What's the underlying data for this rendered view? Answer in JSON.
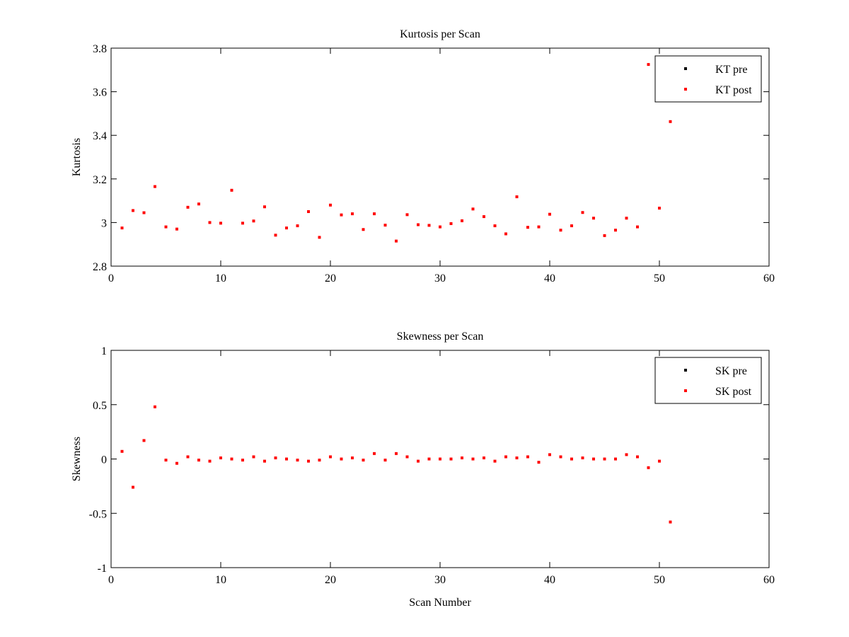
{
  "chart_data": [
    {
      "type": "scatter",
      "title": "Kurtosis per Scan",
      "xlabel": "",
      "ylabel": "Kurtosis",
      "xlim": [
        0,
        60
      ],
      "ylim": [
        2.8,
        3.8
      ],
      "xticks": [
        0,
        10,
        20,
        30,
        40,
        50,
        60
      ],
      "yticks": [
        2.8,
        3,
        3.2,
        3.4,
        3.6,
        3.8
      ],
      "xtick_labels": [
        "0",
        "10",
        "20",
        "30",
        "40",
        "50",
        "60"
      ],
      "ytick_labels": [
        "2.8",
        "3",
        "3.2",
        "3.4",
        "3.6",
        "3.8"
      ],
      "legend_position": "top-right",
      "series": [
        {
          "name": "KT pre",
          "color": "#000000",
          "x": [],
          "y": []
        },
        {
          "name": "KT post",
          "color": "#ff0000",
          "x": [
            1,
            2,
            3,
            4,
            5,
            6,
            7,
            8,
            9,
            10,
            11,
            12,
            13,
            14,
            15,
            16,
            17,
            18,
            19,
            20,
            21,
            22,
            23,
            24,
            25,
            26,
            27,
            28,
            29,
            30,
            31,
            32,
            33,
            34,
            35,
            36,
            37,
            38,
            39,
            40,
            41,
            42,
            43,
            44,
            45,
            46,
            47,
            48,
            49,
            50,
            51
          ],
          "y": [
            2.975,
            3.055,
            3.045,
            3.165,
            2.98,
            2.97,
            3.07,
            3.085,
            3.0,
            2.997,
            3.148,
            2.997,
            3.007,
            3.072,
            2.942,
            2.975,
            2.985,
            3.05,
            2.932,
            3.08,
            3.035,
            3.04,
            2.968,
            3.04,
            2.988,
            2.915,
            3.036,
            2.99,
            2.987,
            2.98,
            2.995,
            3.008,
            3.062,
            3.027,
            2.985,
            2.948,
            3.118,
            2.978,
            2.98,
            3.038,
            2.965,
            2.985,
            3.046,
            3.02,
            2.94,
            2.965,
            3.02,
            2.98,
            3.725,
            3.066,
            3.463
          ]
        }
      ]
    },
    {
      "type": "scatter",
      "title": "Skewness per Scan",
      "xlabel": "Scan Number",
      "ylabel": "Skewness",
      "xlim": [
        0,
        60
      ],
      "ylim": [
        -1,
        1
      ],
      "xticks": [
        0,
        10,
        20,
        30,
        40,
        50,
        60
      ],
      "yticks": [
        -1,
        -0.5,
        0,
        0.5,
        1
      ],
      "xtick_labels": [
        "0",
        "10",
        "20",
        "30",
        "40",
        "50",
        "60"
      ],
      "ytick_labels": [
        "-1",
        "-0.5",
        "0",
        "0.5",
        "1"
      ],
      "legend_position": "top-right",
      "series": [
        {
          "name": "SK pre",
          "color": "#000000",
          "x": [],
          "y": []
        },
        {
          "name": "SK post",
          "color": "#ff0000",
          "x": [
            1,
            2,
            3,
            4,
            5,
            6,
            7,
            8,
            9,
            10,
            11,
            12,
            13,
            14,
            15,
            16,
            17,
            18,
            19,
            20,
            21,
            22,
            23,
            24,
            25,
            26,
            27,
            28,
            29,
            30,
            31,
            32,
            33,
            34,
            35,
            36,
            37,
            38,
            39,
            40,
            41,
            42,
            43,
            44,
            45,
            46,
            47,
            48,
            49,
            50,
            51
          ],
          "y": [
            0.07,
            -0.26,
            0.17,
            0.48,
            -0.01,
            -0.04,
            0.02,
            -0.01,
            -0.02,
            0.01,
            0.0,
            -0.01,
            0.02,
            -0.02,
            0.01,
            0.0,
            -0.01,
            -0.02,
            -0.01,
            0.02,
            0.0,
            0.01,
            -0.01,
            0.05,
            -0.01,
            0.05,
            0.02,
            -0.02,
            0.0,
            0.0,
            0.0,
            0.01,
            0.0,
            0.01,
            -0.02,
            0.02,
            0.01,
            0.02,
            -0.03,
            0.04,
            0.02,
            0.0,
            0.01,
            0.0,
            0.0,
            0.0,
            0.04,
            0.02,
            -0.08,
            -0.02,
            -0.58
          ]
        }
      ]
    }
  ]
}
